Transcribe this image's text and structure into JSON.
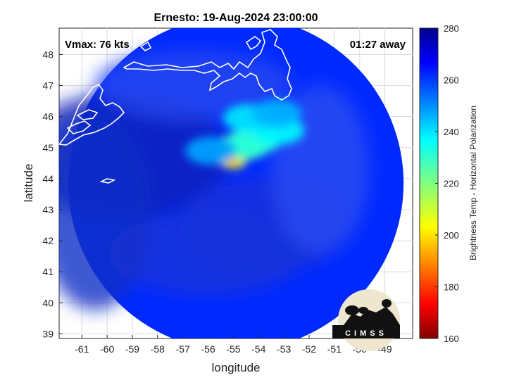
{
  "chart_data": {
    "type": "heatmap",
    "title": "Ernesto: 19-Aug-2024 23:00:00",
    "xlabel": "longitude",
    "ylabel": "latitude",
    "xlim": [
      -61.9,
      -47.9
    ],
    "ylim": [
      38.85,
      48.85
    ],
    "xticks": [
      -61,
      -60,
      -59,
      -58,
      -57,
      -56,
      -55,
      -54,
      -53,
      -52,
      -51,
      -50,
      -49
    ],
    "yticks": [
      39,
      40,
      41,
      42,
      43,
      44,
      45,
      46,
      47,
      48
    ],
    "grid": true,
    "annotations": {
      "vmax": "Vmax: 76 kts",
      "time_away": "01:27 away"
    },
    "storm_center": {
      "lon": -55.0,
      "lat": 44.55
    },
    "swath": {
      "center_lon": -54.9,
      "center_lat": 43.85,
      "radius_deg_lat": 5.4
    },
    "colorbar": {
      "label": "Brightness Temp - Horizontal Polarization",
      "min": 160,
      "max": 280,
      "ticks": [
        160,
        180,
        200,
        220,
        240,
        260,
        280
      ],
      "colormap": "jet"
    },
    "bright_features": [
      {
        "lon": -55.0,
        "lat": 44.55,
        "value": 205
      },
      {
        "lon": -54.6,
        "lat": 45.05,
        "value": 228
      },
      {
        "lon": -54.1,
        "lat": 45.25,
        "value": 232
      },
      {
        "lon": -53.2,
        "lat": 45.55,
        "value": 238
      },
      {
        "lon": -54.4,
        "lat": 45.95,
        "value": 240
      },
      {
        "lon": -53.3,
        "lat": 46.1,
        "value": 246
      },
      {
        "lon": -55.9,
        "lat": 44.9,
        "value": 248
      }
    ],
    "background_value": 262
  },
  "logo": {
    "text": "CIMSS"
  }
}
